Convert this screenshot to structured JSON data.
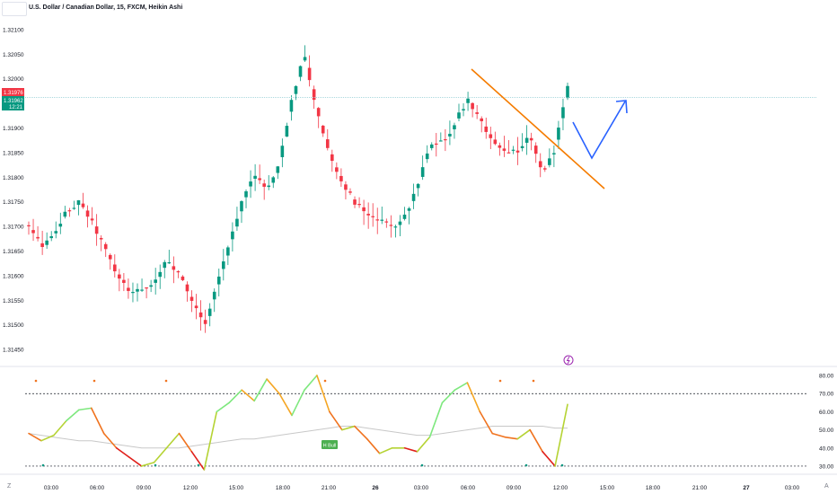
{
  "header": {
    "title": "U.S. Dollar / Canadian Dollar, 15, FXCM, Heikin Ashi"
  },
  "price_tags": {
    "bid": "1.31976",
    "last": "1.31962",
    "countdown": "12:21"
  },
  "osc_labels": {
    "hbull": "H Bull"
  },
  "corner": {
    "left": "Z",
    "right": "A"
  },
  "colors": {
    "up": "#089981",
    "down": "#f23645",
    "trend": "#f57c00",
    "projection": "#2962ff",
    "osc_level": "#131722"
  },
  "chart_data": [
    {
      "type": "candlestick",
      "title": "U.S. Dollar / Canadian Dollar, 15, FXCM, Heikin Ashi",
      "ylim": [
        1.3143,
        1.3212
      ],
      "y_ticks": [
        "1.32100",
        "1.32050",
        "1.32000",
        "1.31950",
        "1.31900",
        "1.31850",
        "1.31800",
        "1.31750",
        "1.31700",
        "1.31650",
        "1.31600",
        "1.31550",
        "1.31500",
        "1.31450"
      ],
      "x_ticks": [
        "03:00",
        "06:00",
        "09:00",
        "12:00",
        "15:00",
        "18:00",
        "21:00",
        "26",
        "03:00",
        "06:00",
        "09:00",
        "12:00",
        "15:00",
        "18:00",
        "21:00",
        "27",
        "03:00"
      ],
      "current_price": 1.31962,
      "price_path": [
        1.317,
        1.3166,
        1.3168,
        1.3173,
        1.3175,
        1.3171,
        1.3166,
        1.316,
        1.3157,
        1.3157,
        1.3159,
        1.3163,
        1.316,
        1.3155,
        1.315,
        1.3158,
        1.3167,
        1.3175,
        1.3181,
        1.3177,
        1.3183,
        1.3196,
        1.3205,
        1.3193,
        1.3185,
        1.3179,
        1.3175,
        1.3172,
        1.3171,
        1.317,
        1.3172,
        1.3178,
        1.3186,
        1.3187,
        1.3191,
        1.3196,
        1.3192,
        1.3187,
        1.3185,
        1.3185,
        1.3189,
        1.318,
        1.3186,
        1.3199
      ]
    },
    {
      "type": "line",
      "ylim": [
        27,
        82
      ],
      "y_ticks": [
        "80.00",
        "70.00",
        "60.00",
        "50.00",
        "40.00",
        "30.00"
      ],
      "levels": [
        70,
        30
      ],
      "series": [
        {
          "name": "",
          "values": [
            48,
            44,
            47,
            55,
            61,
            62,
            48,
            40,
            35,
            30,
            32,
            40,
            48,
            38,
            28,
            60,
            65,
            72,
            66,
            78,
            70,
            58,
            72,
            80,
            60,
            50,
            52,
            45,
            37,
            40,
            40,
            38,
            46,
            65,
            72,
            76,
            60,
            48,
            46,
            45,
            50,
            38,
            30,
            64
          ]
        },
        {
          "name": "",
          "values": [
            48,
            47,
            46,
            45,
            44,
            44,
            43,
            42,
            41,
            40,
            40,
            40,
            40,
            41,
            42,
            43,
            44,
            45,
            45,
            46,
            47,
            48,
            49,
            50,
            51,
            52,
            52,
            51,
            50,
            49,
            48,
            47,
            47,
            48,
            49,
            50,
            51,
            52,
            52,
            52,
            52,
            52,
            51,
            51
          ]
        }
      ]
    }
  ]
}
